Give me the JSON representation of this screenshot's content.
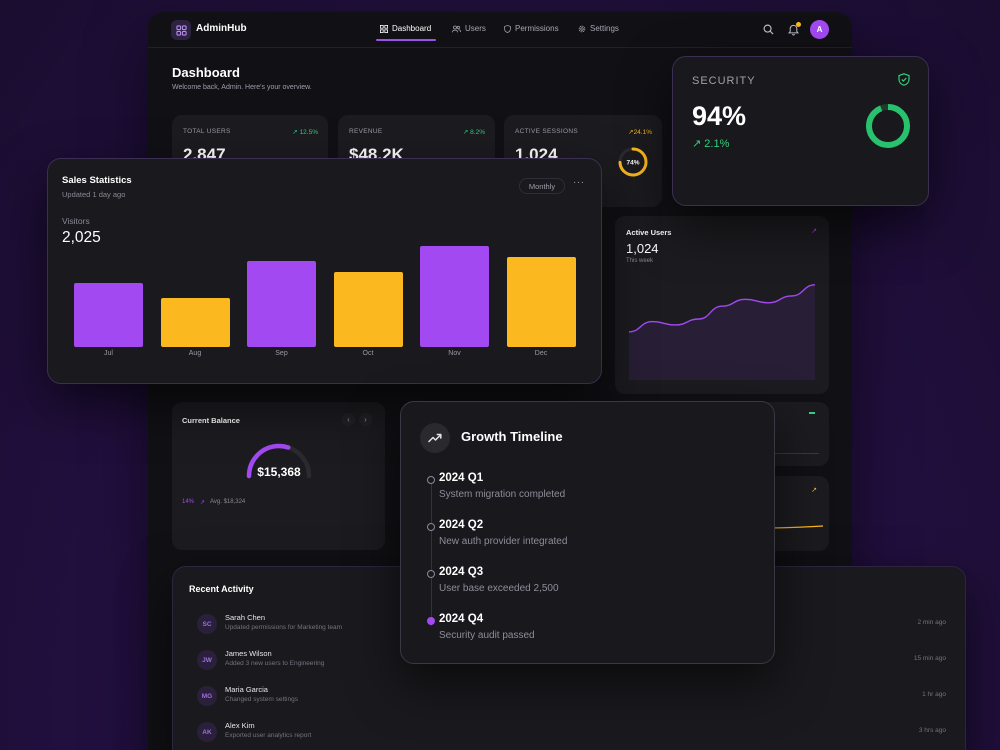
{
  "app": {
    "name": "AdminHub",
    "avatar_initial": "A"
  },
  "nav": [
    {
      "label": "Dashboard",
      "icon": "grid-icon"
    },
    {
      "label": "Users",
      "icon": "users-icon"
    },
    {
      "label": "Permissions",
      "icon": "shield-icon"
    },
    {
      "label": "Settings",
      "icon": "gear-icon"
    }
  ],
  "header": {
    "title": "Dashboard",
    "subtitle": "Welcome back, Admin. Here's your overview."
  },
  "stats": [
    {
      "label": "TOTAL USERS",
      "value": "2,847",
      "change": "12.5%"
    },
    {
      "label": "REVENUE",
      "value": "$48.2K",
      "change": "8.2%"
    },
    {
      "label": "ACTIVE SESSIONS",
      "value": "1,024",
      "change": "24.1%",
      "ring_label": "74%",
      "ring_fraction": 0.74
    }
  ],
  "security": {
    "title": "SECURITY",
    "value": "94%",
    "change": "2.1%",
    "fraction": 0.94
  },
  "sales": {
    "title": "Sales Statistics",
    "updated": "Updated 1 day ago",
    "period": "Monthly",
    "visitors_label": "Visitors",
    "visitors_value": "2,025",
    "chart_data": {
      "type": "bar",
      "categories": [
        "Jul",
        "Aug",
        "Sep",
        "Oct",
        "Nov",
        "Dec"
      ],
      "values": [
        52,
        40,
        70,
        61,
        83,
        74
      ],
      "colors": [
        "#a349f2",
        "#fbb91f",
        "#a349f2",
        "#fbb91f",
        "#a349f2",
        "#fbb91f"
      ]
    }
  },
  "active_users": {
    "title": "Active Users",
    "value": "1,024",
    "period": "This week",
    "chart_data": {
      "type": "area",
      "values": [
        40,
        52,
        48,
        55,
        70,
        78,
        74,
        82,
        95
      ]
    }
  },
  "balance": {
    "title": "Current Balance",
    "value": "$15,368",
    "percent": "14%",
    "avg": "Avg. $18,324",
    "fraction": 0.6
  },
  "timeline": {
    "title": "Growth Timeline",
    "items": [
      {
        "quarter": "2024 Q1",
        "desc": "System migration completed",
        "active": false
      },
      {
        "quarter": "2024 Q2",
        "desc": "New auth provider integrated",
        "active": false
      },
      {
        "quarter": "2024 Q3",
        "desc": "User base exceeded 2,500",
        "active": false
      },
      {
        "quarter": "2024 Q4",
        "desc": "Security audit passed",
        "active": true
      }
    ]
  },
  "activity": {
    "title": "Recent Activity",
    "items": [
      {
        "initials": "SC",
        "name": "Sarah Chen",
        "desc": "Updated permissions for Marketing team",
        "time": "2 min ago"
      },
      {
        "initials": "JW",
        "name": "James Wilson",
        "desc": "Added 3 new users to Engineering",
        "time": "15 min ago"
      },
      {
        "initials": "MG",
        "name": "Maria Garcia",
        "desc": "Changed system settings",
        "time": "1 hr ago"
      },
      {
        "initials": "AK",
        "name": "Alex Kim",
        "desc": "Exported user analytics report",
        "time": "3 hrs ago"
      }
    ]
  },
  "colors": {
    "purple": "#a349f2",
    "yellow": "#fbb91f",
    "green": "#32d07b"
  }
}
